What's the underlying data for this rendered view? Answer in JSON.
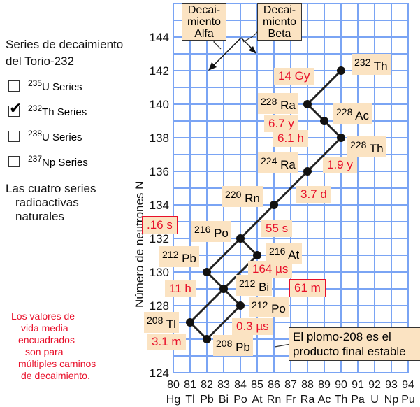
{
  "title": [
    "Series de decaimiento",
    "del Torio-232"
  ],
  "legend": [
    {
      "mass": "235",
      "label": "U Series",
      "checked": false
    },
    {
      "mass": "232",
      "label": "Th Series",
      "checked": true
    },
    {
      "mass": "238",
      "label": "U Series",
      "checked": false
    },
    {
      "mass": "237",
      "label": "Np Series",
      "checked": false
    }
  ],
  "subtitle": [
    "Las cuatro series",
    "radioactivas",
    "naturales"
  ],
  "note": [
    "Los valores de",
    "vida media",
    "encuadrados",
    "son para",
    "múltiples caminos",
    "de decaimiento."
  ],
  "ylabel": "Número de neutrones N",
  "yticks": [
    "124",
    "126",
    "128",
    "130",
    "132",
    "134",
    "136",
    "138",
    "140",
    "142",
    "144"
  ],
  "xticks": [
    {
      "z": "80",
      "el": "Hg"
    },
    {
      "z": "81",
      "el": "Tl"
    },
    {
      "z": "82",
      "el": "Pb"
    },
    {
      "z": "83",
      "el": "Bi"
    },
    {
      "z": "84",
      "el": "Po"
    },
    {
      "z": "85",
      "el": "At"
    },
    {
      "z": "86",
      "el": "Rn"
    },
    {
      "z": "87",
      "el": "Fr"
    },
    {
      "z": "88",
      "el": "Ra"
    },
    {
      "z": "89",
      "el": "Ac"
    },
    {
      "z": "90",
      "el": "Th"
    },
    {
      "z": "91",
      "el": "Pa"
    },
    {
      "z": "92",
      "el": "U"
    },
    {
      "z": "93",
      "el": "Np"
    },
    {
      "z": "94",
      "el": "Pu"
    }
  ],
  "callouts": {
    "alpha": [
      "Decai-",
      "miento",
      "Alfa"
    ],
    "beta": [
      "Decai-",
      "miento",
      "Beta"
    ],
    "final": [
      "El plomo-208 es el",
      "producto final estable"
    ]
  },
  "nuclides": [
    {
      "mass": "232",
      "el": "Th",
      "z": 90,
      "n": 142
    },
    {
      "mass": "228",
      "el": "Ra",
      "z": 88,
      "n": 140
    },
    {
      "mass": "228",
      "el": "Ac",
      "z": 89,
      "n": 139
    },
    {
      "mass": "228",
      "el": "Th",
      "z": 90,
      "n": 138
    },
    {
      "mass": "224",
      "el": "Ra",
      "z": 88,
      "n": 136
    },
    {
      "mass": "220",
      "el": "Rn",
      "z": 86,
      "n": 134
    },
    {
      "mass": "216",
      "el": "Po",
      "z": 84,
      "n": 132
    },
    {
      "mass": "216",
      "el": "At",
      "z": 85,
      "n": 131
    },
    {
      "mass": "212",
      "el": "Pb",
      "z": 82,
      "n": 130
    },
    {
      "mass": "212",
      "el": "Bi",
      "z": 83,
      "n": 129
    },
    {
      "mass": "212",
      "el": "Po",
      "z": 84,
      "n": 128
    },
    {
      "mass": "208",
      "el": "Tl",
      "z": 81,
      "n": 127
    },
    {
      "mass": "208",
      "el": "Pb",
      "z": 82,
      "n": 126
    }
  ],
  "halflives": [
    {
      "text": "14 Gy",
      "boxed": false
    },
    {
      "text": "6.7 y",
      "boxed": false
    },
    {
      "text": "6.1 h",
      "boxed": false
    },
    {
      "text": "1.9 y",
      "boxed": false
    },
    {
      "text": "3.7 d",
      "boxed": false
    },
    {
      "text": "55 s",
      "boxed": false
    },
    {
      "text": ".16 s",
      "boxed": true
    },
    {
      "text": "164 µs",
      "boxed": false
    },
    {
      "text": "11 h",
      "boxed": false
    },
    {
      "text": "61 m",
      "boxed": true
    },
    {
      "text": "0.3 µs",
      "boxed": false
    },
    {
      "text": "3.1 m",
      "boxed": false
    }
  ],
  "colors": {
    "grid": "#7aa4f4",
    "halflife": "#e8102a",
    "label_bg": "#fbe3c2"
  }
}
